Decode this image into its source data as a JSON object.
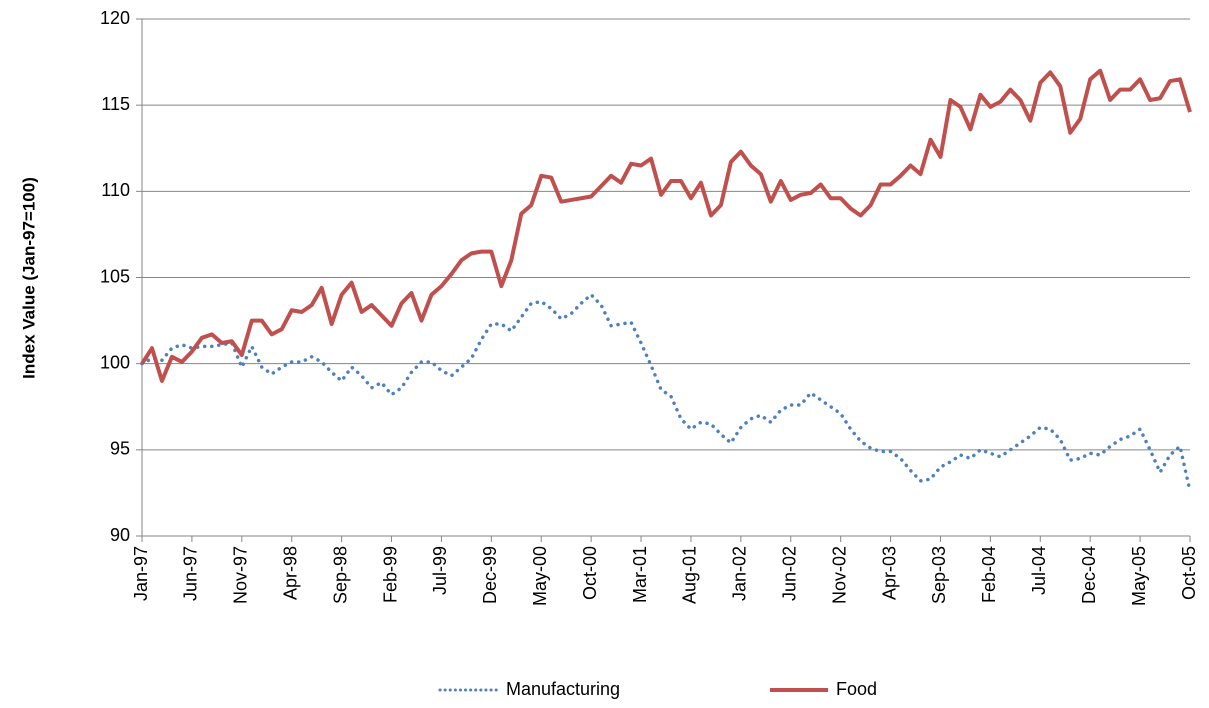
{
  "chart_data": {
    "type": "line",
    "y_label": "Index Value (Jan-97=100)",
    "categories": [
      "Jan-97",
      null,
      null,
      null,
      null,
      "Jun-97",
      null,
      null,
      null,
      null,
      "Nov-97",
      null,
      null,
      null,
      null,
      "Apr-98",
      null,
      null,
      null,
      null,
      "Sep-98",
      null,
      null,
      null,
      null,
      "Feb-99",
      null,
      null,
      null,
      null,
      "Jul-99",
      null,
      null,
      null,
      null,
      "Dec-99",
      null,
      null,
      null,
      null,
      "May-00",
      null,
      null,
      null,
      null,
      "Oct-00",
      null,
      null,
      null,
      null,
      "Mar-01",
      null,
      null,
      null,
      null,
      "Aug-01",
      null,
      null,
      null,
      null,
      "Jan-02",
      null,
      null,
      null,
      null,
      "Jun-02",
      null,
      null,
      null,
      null,
      "Nov-02",
      null,
      null,
      null,
      null,
      "Apr-03",
      null,
      null,
      null,
      null,
      "Sep-03",
      null,
      null,
      null,
      null,
      "Feb-04",
      null,
      null,
      null,
      null,
      "Jul-04",
      null,
      null,
      null,
      null,
      "Dec-04",
      null,
      null,
      null,
      null,
      "May-05",
      null,
      null,
      null,
      null,
      "Oct-05"
    ],
    "series": [
      {
        "name": "Manufacturing",
        "color": "#4f81bd",
        "dash": "dotted",
        "values": [
          100,
          100.3,
          100.2,
          100.9,
          101.1,
          100.9,
          101.0,
          101.0,
          101.1,
          101.2,
          99.8,
          101.0,
          99.8,
          99.4,
          99.8,
          100.1,
          100.1,
          100.4,
          100.1,
          99.5,
          99.0,
          99.8,
          99.3,
          98.6,
          98.9,
          98.2,
          98.6,
          99.5,
          100.1,
          100.1,
          99.6,
          99.3,
          99.8,
          100.3,
          101.4,
          102.3,
          102.3,
          101.9,
          102.7,
          103.5,
          103.6,
          103.2,
          102.6,
          102.9,
          103.5,
          104.0,
          103.4,
          102.2,
          102.3,
          102.4,
          101.2,
          99.9,
          98.5,
          98.1,
          96.8,
          96.2,
          96.6,
          96.5,
          95.9,
          95.4,
          96.3,
          96.8,
          97.0,
          96.6,
          97.3,
          97.6,
          97.6,
          98.3,
          97.9,
          97.5,
          97.1,
          96.2,
          95.5,
          95.1,
          94.9,
          94.9,
          94.5,
          93.8,
          93.2,
          93.3,
          94.0,
          94.3,
          94.7,
          94.5,
          95.0,
          94.8,
          94.6,
          95.0,
          95.4,
          95.8,
          96.3,
          96.2,
          95.6,
          94.4,
          94.5,
          94.8,
          94.7,
          95.2,
          95.6,
          95.8,
          96.2,
          95.0,
          93.7,
          94.7,
          95.2,
          92.6
        ]
      },
      {
        "name": "Food",
        "color": "#c0504d",
        "dash": "solid",
        "values": [
          100,
          100.9,
          99.0,
          100.4,
          100.1,
          100.7,
          101.5,
          101.7,
          101.2,
          101.3,
          100.5,
          102.5,
          102.5,
          101.7,
          102.0,
          103.1,
          103.0,
          103.4,
          104.4,
          102.3,
          104.0,
          104.7,
          103.0,
          103.4,
          102.8,
          102.2,
          103.5,
          104.1,
          102.5,
          104.0,
          104.5,
          105.2,
          106.0,
          106.4,
          106.5,
          106.5,
          104.5,
          106.0,
          108.7,
          109.2,
          110.9,
          110.8,
          109.4,
          109.5,
          109.6,
          109.7,
          110.3,
          110.9,
          110.5,
          111.6,
          111.5,
          111.9,
          109.8,
          110.6,
          110.6,
          109.6,
          110.5,
          108.6,
          109.2,
          111.7,
          112.3,
          111.5,
          111.0,
          109.4,
          110.6,
          109.5,
          109.8,
          109.9,
          110.4,
          109.6,
          109.6,
          109.0,
          108.6,
          109.2,
          110.4,
          110.4,
          110.9,
          111.5,
          111.0,
          113.0,
          112.0,
          115.3,
          114.9,
          113.6,
          115.6,
          114.9,
          115.2,
          115.9,
          115.3,
          114.1,
          116.3,
          116.9,
          116.1,
          113.4,
          114.2,
          116.5,
          117.0,
          115.3,
          115.9,
          115.9,
          116.5,
          115.3,
          115.4,
          116.4,
          116.5,
          114.6
        ]
      }
    ],
    "ylim": [
      90,
      120
    ],
    "yticks": [
      90,
      95,
      100,
      105,
      110,
      115,
      120
    ],
    "grid": true,
    "legend": "bottom"
  }
}
